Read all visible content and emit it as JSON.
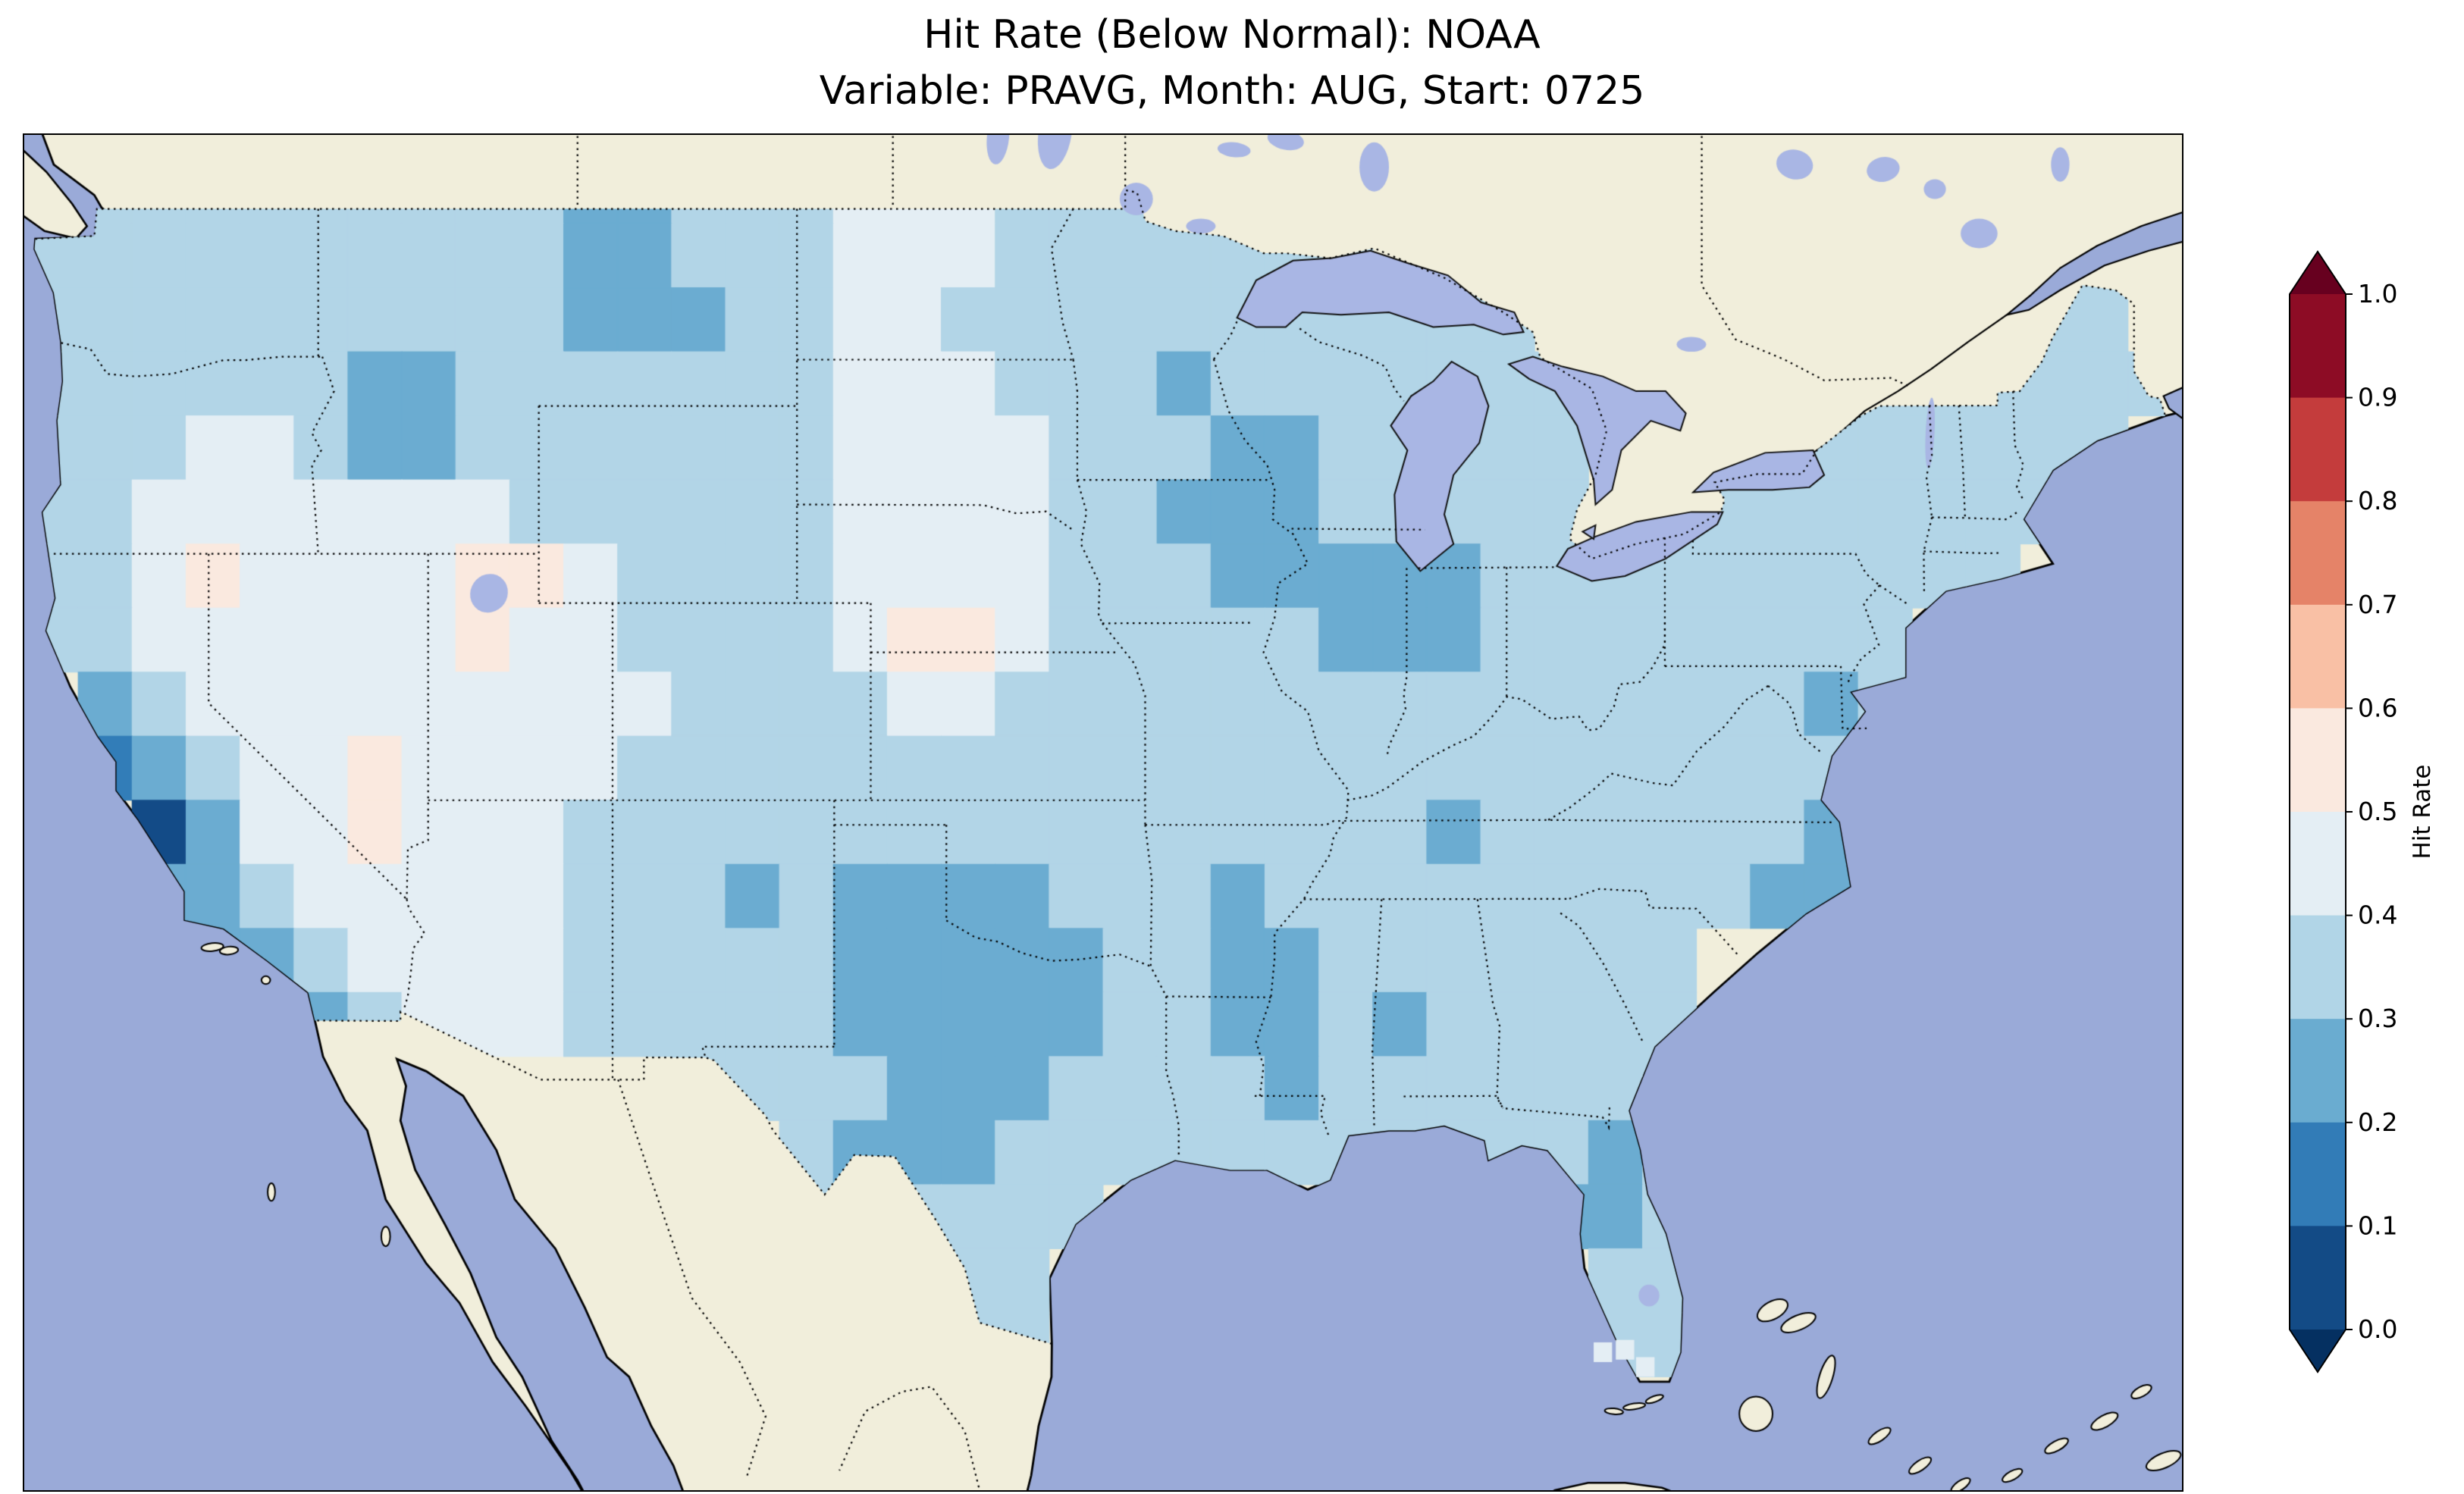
{
  "figure": {
    "title_line1": "Hit Rate (Below Normal): NOAA",
    "title_line2": "Variable: PRAVG, Month: AUG, Start: 0725",
    "background": "#ffffff"
  },
  "map_colors": {
    "ocean": "#9aaad8",
    "land": "#f1eedb",
    "lakes": "#a9b6e4",
    "coastline": "#000000",
    "borders": "#000000"
  },
  "colorbar": {
    "label": "Hit Rate",
    "orientation": "vertical",
    "ticks": [
      "1.0",
      "0.9",
      "0.8",
      "0.7",
      "0.6",
      "0.5",
      "0.4",
      "0.3",
      "0.2",
      "0.1",
      "0.0"
    ],
    "tick_values": [
      1.0,
      0.9,
      0.8,
      0.7,
      0.6,
      0.5,
      0.4,
      0.3,
      0.2,
      0.1,
      0.0
    ],
    "n_bands": 10,
    "band_width": 0.1,
    "colormap_anchors": [
      "#053061",
      "#2166ac",
      "#4393c3",
      "#92c5de",
      "#d1e5f0",
      "#f7f7f7",
      "#fddbc7",
      "#f4a582",
      "#d6604d",
      "#b2182b",
      "#67001f"
    ],
    "under_arrow_color": "#053061",
    "over_arrow_color": "#67001f"
  },
  "chart_data": {
    "type": "heatmap",
    "title": "Hit Rate (Below Normal): NOAA",
    "subtitle": "Variable: PRAVG, Month: AUG, Start: 0725",
    "value_name": "Hit Rate",
    "value_range": [
      0.0,
      1.0
    ],
    "region": "Contiguous United States (map window approx lat 23-50.5 N, lon 125-66.5 W)",
    "grid_definition": {
      "lon_start": -125,
      "lat_start": 50,
      "dlon": 1.4625,
      "dlat": 1.3,
      "cols": 40,
      "rows": 20,
      "order": "rows north to south, cols west to east"
    },
    "cell_encoding": "'.' = no data (outside CONUS); digit d = hit rate of d/10 + 0.05 (center of the 0.1-wide color band, e.g. '3' = 0.3-0.4 band)",
    "grid": [
      "3333333333223334443333333...............",
      "3333333333223334443333333............33.",
      "3333333333222334433333333333.........33.",
      "33333322333333344433323333333.....333333",
      "33344322333333344443332233333....333333.",
      "33444444433333344443322233333.33333333..",
      "3345444455433334444333222223333333333...",
      "33444444544333345543333322233333333.....",
      ".2344444444433334433333333333333323.....",
      ".123445444433333333333333333333333......",
      "..02445444333333333333333323333332......",
      "..22344444333232222333233333333322......",
      "...2234444333332222233223333333.........",
      ".....23444333332222233223233333.........",
      "............3333222333323333333.........",
      "..............32223333333333323.........",
      "..............3.3333........223.........",
      ".................33..........33.........",
      ".................33..........33.........",
      "........................................"
    ],
    "stray_cells": [
      {
        "lon": -82.2,
        "lat": 25.8,
        "value": 0.45
      },
      {
        "lon": -81.6,
        "lat": 25.85,
        "value": 0.45
      },
      {
        "lon": -81.05,
        "lat": 25.5,
        "value": 0.45
      }
    ],
    "observed_extremes": {
      "lowest": "about 0.05-0.15 on the central California coast (San Francisco Bay / Monterey area, darkest navy cells)",
      "low_patches_0.2_0.3": [
        "central and west Texas into western Oklahoma (large patch)",
        "Iowa-Illinois-Indiana",
        "southwest Wisconsin / NE Iowa",
        "central Montana",
        "central Idaho",
        "western Mississippi",
        "north-central Florida peninsula",
        "coastal North Carolina",
        "Chesapeake Bay area",
        "Minneapolis area",
        "small spots in New Mexico, Alabama, Tennessee"
      ],
      "high_patches_0.5_0.6": [
        "northwest Nevada",
        "central Utah",
        "southern Nevada",
        "central Nebraska-Kansas",
        "southeast Oregon"
      ],
      "typical": "0.3-0.45 (light blue) across most of the CONUS"
    },
    "legend_position": "right",
    "grid_lines": "off"
  }
}
